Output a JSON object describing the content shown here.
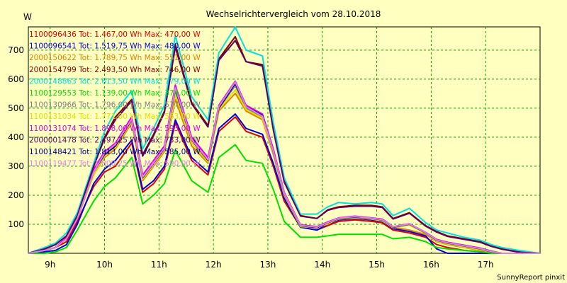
{
  "chart_data": {
    "type": "line",
    "title": "Wechselrichtervergleich vom 28.10.2018",
    "ylabel": "W",
    "footer": "SunnyReport pinxit",
    "xlim": [
      8.6,
      18.0
    ],
    "ylim": [
      0,
      780
    ],
    "grid": true,
    "legend_position": "top-left",
    "x": [
      8.6,
      8.9,
      9.1,
      9.3,
      9.5,
      9.8,
      10.0,
      10.2,
      10.5,
      10.7,
      10.9,
      11.1,
      11.3,
      11.6,
      11.9,
      12.1,
      12.4,
      12.6,
      12.9,
      13.1,
      13.3,
      13.6,
      13.9,
      14.1,
      14.3,
      14.6,
      14.9,
      15.1,
      15.3,
      15.6,
      15.9,
      16.1,
      16.3,
      16.6,
      16.9,
      17.1,
      17.3,
      17.6,
      18.0
    ],
    "x_ticks": [
      {
        "v": 9,
        "label": "9h"
      },
      {
        "v": 10,
        "label": "10h"
      },
      {
        "v": 11,
        "label": "11h"
      },
      {
        "v": 12,
        "label": "12h"
      },
      {
        "v": 13,
        "label": "13h"
      },
      {
        "v": 14,
        "label": "14h"
      },
      {
        "v": 15,
        "label": "15h"
      },
      {
        "v": 16,
        "label": "16h"
      },
      {
        "v": 17,
        "label": "17h"
      }
    ],
    "y_ticks": [
      100,
      200,
      300,
      400,
      500,
      600,
      700
    ],
    "series": [
      {
        "name": "1100096436",
        "legend": "1100096436 Tot: 1.467,00 Wh Max: 470,00 W",
        "color": "#e00000",
        "values": [
          0,
          10,
          20,
          40,
          110,
          230,
          280,
          300,
          380,
          210,
          240,
          290,
          450,
          320,
          270,
          420,
          470,
          420,
          400,
          300,
          180,
          90,
          80,
          95,
          110,
          115,
          110,
          105,
          80,
          70,
          55,
          30,
          20,
          10,
          5,
          0,
          0,
          0,
          0
        ]
      },
      {
        "name": "1100096541",
        "legend": "1100096541 Tot: 1.519,75 Wh Max: 480,00 W",
        "color": "#0000e0",
        "values": [
          0,
          5,
          10,
          30,
          100,
          240,
          290,
          320,
          390,
          220,
          250,
          300,
          460,
          330,
          280,
          430,
          480,
          430,
          410,
          310,
          190,
          90,
          80,
          100,
          115,
          120,
          115,
          110,
          85,
          75,
          60,
          15,
          0,
          0,
          0,
          0,
          0,
          0,
          0
        ]
      },
      {
        "name": "2000150622",
        "legend": "2000150622 Tot: 1.789,75 Wh Max: 551,00 W",
        "color": "#e08000",
        "values": [
          0,
          10,
          20,
          50,
          120,
          270,
          330,
          360,
          450,
          250,
          300,
          350,
          530,
          370,
          310,
          490,
          551,
          490,
          460,
          340,
          200,
          95,
          90,
          100,
          120,
          125,
          120,
          115,
          90,
          80,
          65,
          40,
          30,
          20,
          10,
          5,
          0,
          0,
          0
        ]
      },
      {
        "name": "2000154799",
        "legend": "2000154799 Tot: 2.493,50 Wh Max: 746,00 W",
        "color": "#800000",
        "values": [
          0,
          15,
          30,
          60,
          130,
          300,
          400,
          470,
          530,
          340,
          410,
          490,
          720,
          520,
          440,
          670,
          746,
          660,
          650,
          430,
          250,
          130,
          120,
          150,
          160,
          165,
          165,
          160,
          120,
          140,
          95,
          75,
          60,
          50,
          40,
          25,
          15,
          5,
          0
        ]
      },
      {
        "name": "2000148863",
        "legend": "2000148863 Tot: 2.613,50 Wh Max: 779,00 W",
        "color": "#00e0e0",
        "values": [
          0,
          20,
          35,
          70,
          140,
          310,
          420,
          490,
          560,
          360,
          430,
          510,
          750,
          540,
          460,
          690,
          779,
          700,
          680,
          450,
          260,
          135,
          135,
          160,
          175,
          170,
          175,
          170,
          130,
          155,
          105,
          80,
          70,
          55,
          45,
          30,
          20,
          10,
          0
        ]
      },
      {
        "name": "1100129553",
        "legend": "1100129553 Tot: 1.139,00 Wh Max: 374,00 W",
        "color": "#00e000",
        "values": [
          0,
          0,
          5,
          20,
          80,
          180,
          230,
          260,
          330,
          170,
          200,
          240,
          355,
          250,
          210,
          330,
          374,
          320,
          310,
          220,
          110,
          55,
          55,
          60,
          65,
          65,
          65,
          65,
          50,
          55,
          40,
          20,
          15,
          10,
          5,
          0,
          0,
          0,
          0
        ]
      },
      {
        "name": "1100130966",
        "legend": "1100130966 Tot: 1.796,00 Wh Max: 577,00 W",
        "color": "#808080",
        "values": [
          0,
          10,
          20,
          50,
          120,
          280,
          340,
          370,
          460,
          260,
          310,
          360,
          560,
          390,
          320,
          500,
          577,
          500,
          470,
          350,
          205,
          95,
          90,
          105,
          120,
          125,
          120,
          115,
          90,
          100,
          70,
          45,
          35,
          25,
          15,
          5,
          0,
          0,
          0
        ]
      },
      {
        "name": "1100131034",
        "legend": "1100131034 Tot: 1.771,00 Wh Max: 563,00 W",
        "color": "#e0e000",
        "values": [
          0,
          10,
          20,
          50,
          120,
          270,
          335,
          365,
          455,
          255,
          305,
          355,
          545,
          380,
          315,
          495,
          563,
          495,
          465,
          345,
          200,
          92,
          88,
          102,
          118,
          122,
          118,
          112,
          88,
          97,
          68,
          42,
          32,
          22,
          12,
          5,
          0,
          0,
          0
        ]
      },
      {
        "name": "1100131074",
        "legend": "1100131074 Tot: 1.898,00 Wh Max: 593,00 W",
        "color": "#e000e0",
        "values": [
          0,
          10,
          20,
          55,
          125,
          290,
          350,
          380,
          470,
          270,
          320,
          370,
          580,
          400,
          330,
          510,
          593,
          510,
          480,
          360,
          210,
          98,
          92,
          108,
          122,
          128,
          122,
          118,
          92,
          102,
          72,
          48,
          38,
          28,
          18,
          8,
          0,
          0,
          0
        ]
      },
      {
        "name": "2000001478",
        "legend": "2000001478 Tot: 2.497,25 Wh Max: 733,00 W",
        "color": "#600060",
        "values": [
          0,
          15,
          30,
          60,
          130,
          300,
          395,
          460,
          525,
          335,
          405,
          485,
          710,
          515,
          435,
          665,
          733,
          660,
          645,
          425,
          245,
          128,
          120,
          148,
          158,
          162,
          162,
          158,
          118,
          138,
          93,
          73,
          58,
          48,
          38,
          24,
          14,
          4,
          0
        ]
      },
      {
        "name": "1100148421",
        "legend": "1100148421 Tot: 1.813,00 Wh Max: 585,00 W",
        "color": "#000080",
        "values": [
          0,
          10,
          20,
          50,
          120,
          280,
          340,
          370,
          460,
          260,
          310,
          360,
          565,
          390,
          320,
          500,
          585,
          505,
          475,
          350,
          205,
          95,
          88,
          105,
          120,
          125,
          120,
          115,
          90,
          100,
          70,
          45,
          35,
          25,
          15,
          5,
          0,
          0,
          0
        ]
      },
      {
        "name": "1100119477",
        "legend": "1100119477 Tot: 1.800,25 Wh Max: 590,00 W",
        "color": "#e080e0",
        "values": [
          0,
          10,
          20,
          50,
          120,
          280,
          345,
          375,
          462,
          262,
          312,
          362,
          570,
          392,
          322,
          505,
          590,
          505,
          472,
          352,
          206,
          96,
          90,
          106,
          121,
          126,
          121,
          116,
          91,
          101,
          71,
          46,
          36,
          26,
          16,
          6,
          0,
          0,
          0
        ]
      }
    ]
  }
}
